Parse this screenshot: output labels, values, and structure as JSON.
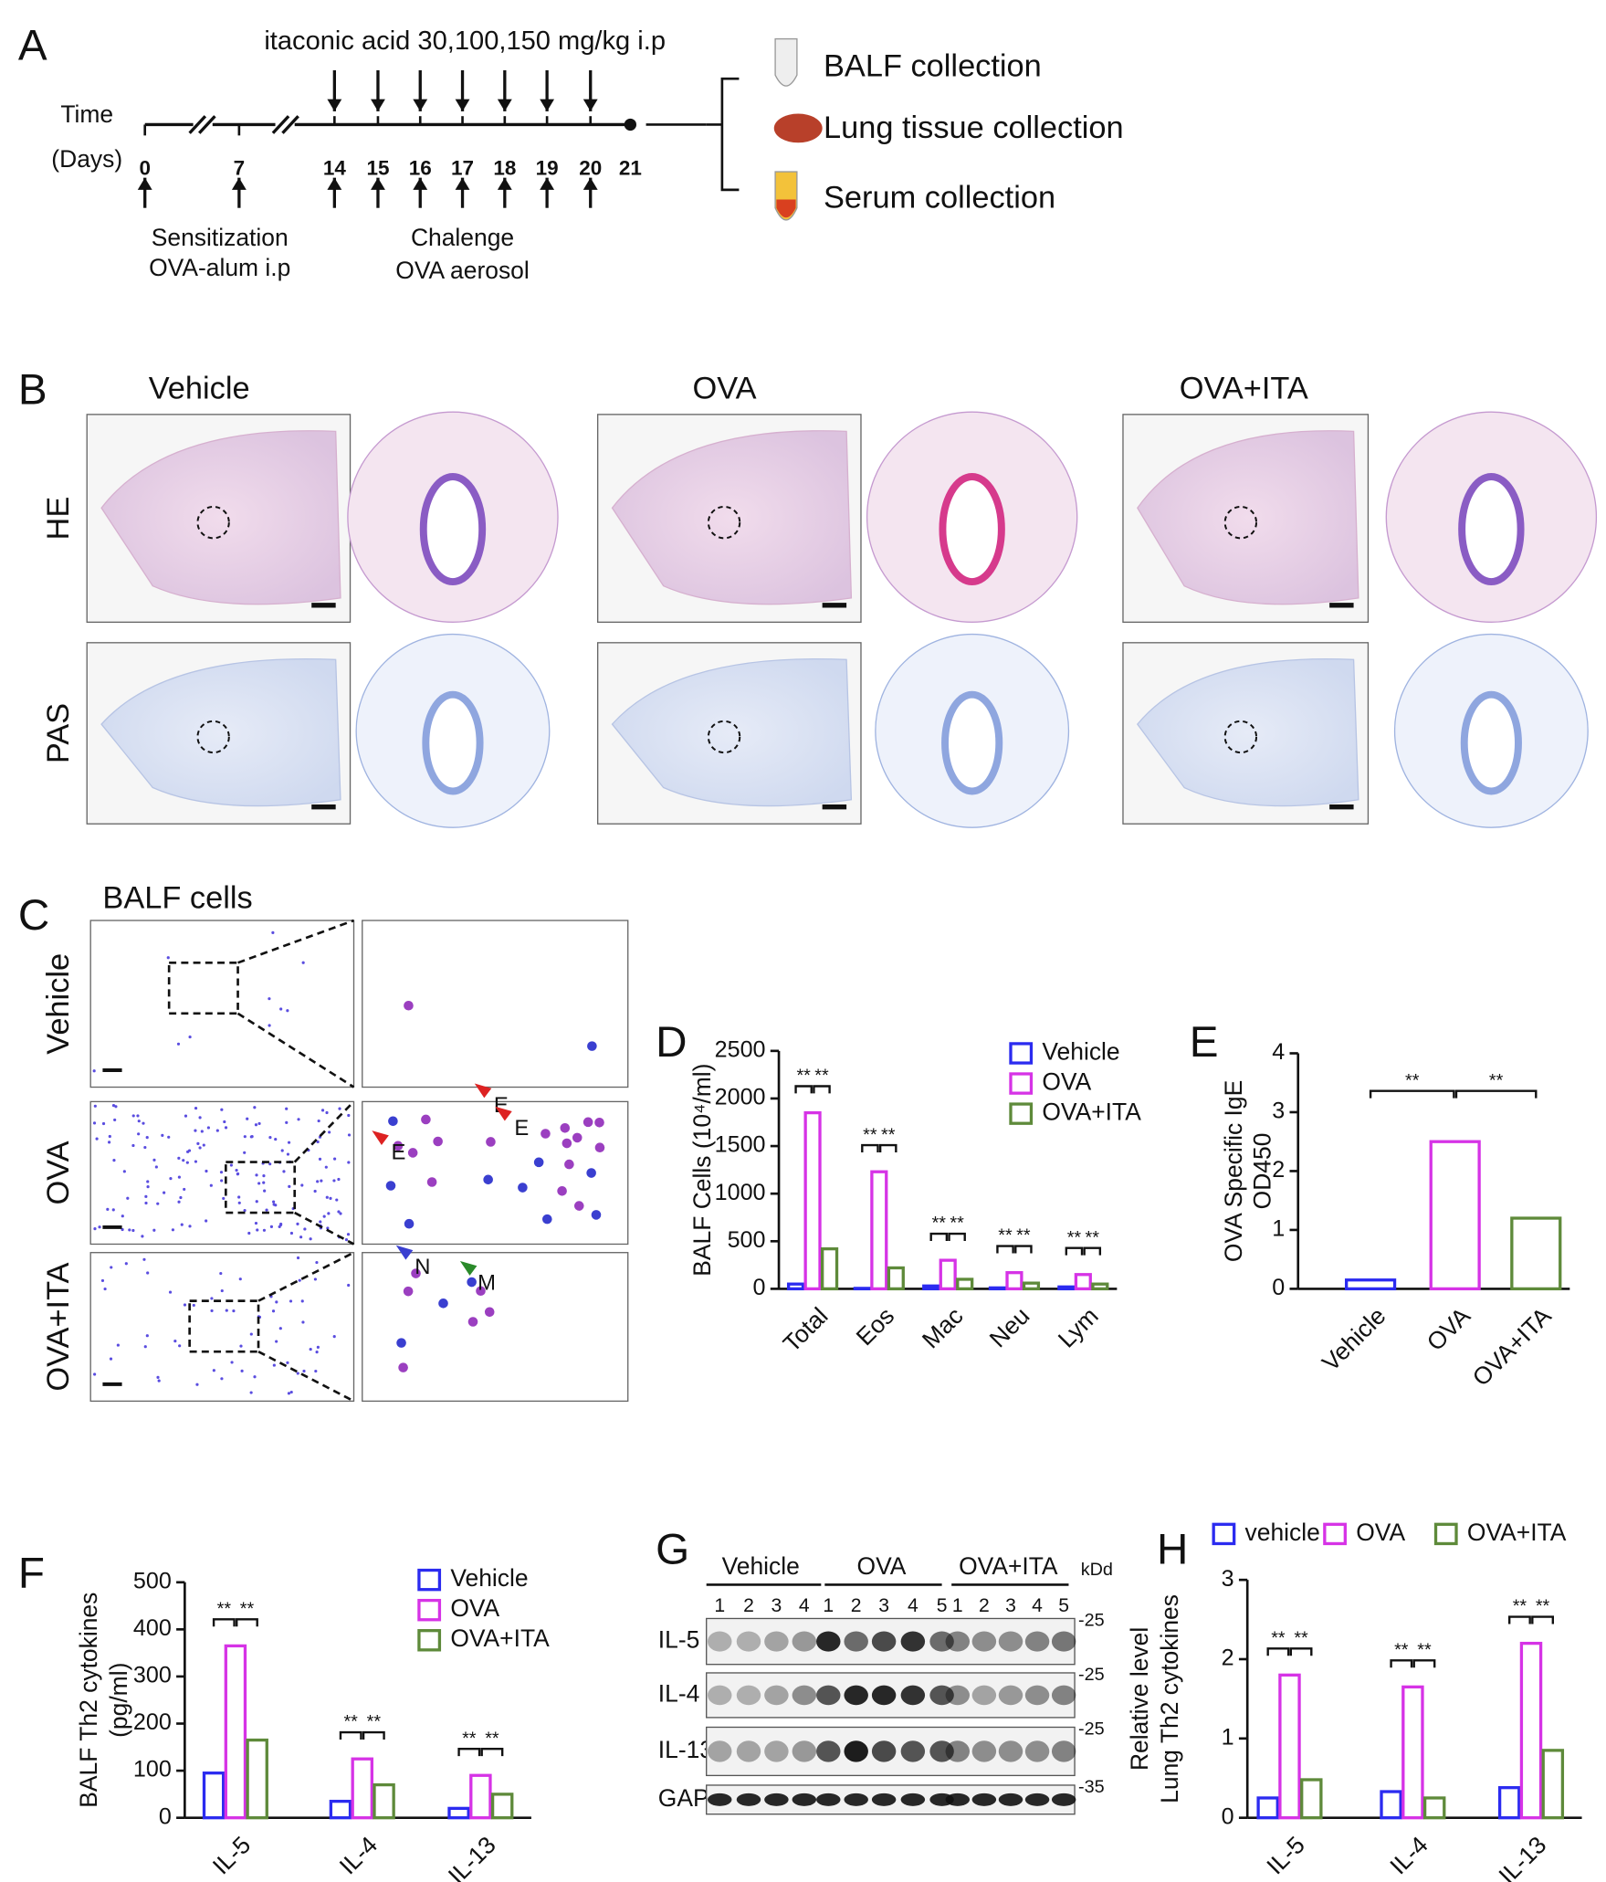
{
  "labels": [
    "A",
    "B",
    "C",
    "D",
    "E",
    "F",
    "G",
    "H"
  ],
  "timeline": {
    "treatment": "itaconic acid 30,100,150 mg/kg i.p",
    "time": "Time",
    "days_label": "(Days)",
    "days": [
      "0",
      "7",
      "14",
      "15",
      "16",
      "17",
      "18",
      "19",
      "20",
      "21"
    ],
    "sensitization": [
      "Sensitization",
      "OVA-alum i.p"
    ],
    "challenge": [
      "Chalenge",
      "OVA aerosol"
    ],
    "collections": [
      "BALF collection",
      "Lung tissue collection",
      "Serum collection"
    ]
  },
  "histology": {
    "groups": [
      "Vehicle",
      "OVA",
      "OVA+ITA"
    ],
    "stains": [
      "HE",
      "PAS"
    ]
  },
  "balf_cells": {
    "title": "BALF cells",
    "groups": [
      "Vehicle",
      "OVA",
      "OVA+ITA"
    ],
    "cell_marks": [
      "E",
      "E",
      "E",
      "N",
      "M"
    ]
  },
  "western_blot": {
    "groups": [
      "Vehicle",
      "OVA",
      "OVA+ITA"
    ],
    "lanes": [
      [
        "1",
        "2",
        "3",
        "4"
      ],
      [
        "1",
        "2",
        "3",
        "4",
        "5"
      ],
      [
        "1",
        "2",
        "3",
        "4",
        "5"
      ]
    ],
    "unit": "kDd",
    "proteins": [
      "IL-5",
      "IL-4",
      "IL-13",
      "GAPDH"
    ],
    "markers": [
      "-25",
      "-25",
      "-25",
      "-35"
    ]
  },
  "chart_data": [
    {
      "type": "bar",
      "ylabel": "BALF Cells (10⁴/ml)",
      "categories": [
        "Total",
        "Eos",
        "Mac",
        "Neu",
        "Lym"
      ],
      "series": [
        {
          "name": "Vehicle",
          "color": "#2b2bf0",
          "values": [
            50,
            5,
            30,
            10,
            20
          ]
        },
        {
          "name": "OVA",
          "color": "#d633e6",
          "values": [
            1850,
            1230,
            300,
            170,
            150
          ]
        },
        {
          "name": "OVA+ITA",
          "color": "#5e8a3a",
          "values": [
            420,
            220,
            100,
            60,
            50
          ]
        }
      ],
      "ylim": [
        0,
        2500
      ],
      "yticks": [
        0,
        500,
        1000,
        1500,
        2000,
        2500
      ],
      "significance": "**"
    },
    {
      "type": "bar",
      "ylabel": [
        "OVA Specific IgE",
        "OD450"
      ],
      "categories": [
        "Vehicle",
        "OVA",
        "OVA+ITA"
      ],
      "values": [
        0.15,
        2.5,
        1.2
      ],
      "colors": [
        "#2b2bf0",
        "#d633e6",
        "#5e8a3a"
      ],
      "ylim": [
        0,
        4
      ],
      "yticks": [
        0,
        1,
        2,
        3,
        4
      ],
      "significance": "**"
    },
    {
      "type": "bar",
      "ylabel": [
        "BALF Th2 cytokines",
        "(pg/ml)"
      ],
      "categories": [
        "IL-5",
        "IL-4",
        "IL-13"
      ],
      "series": [
        {
          "name": "Vehicle",
          "color": "#2b2bf0",
          "values": [
            95,
            35,
            20
          ]
        },
        {
          "name": "OVA",
          "color": "#d633e6",
          "values": [
            365,
            125,
            90
          ]
        },
        {
          "name": "OVA+ITA",
          "color": "#5e8a3a",
          "values": [
            165,
            70,
            50
          ]
        }
      ],
      "ylim": [
        0,
        500
      ],
      "yticks": [
        0,
        100,
        200,
        300,
        400,
        500
      ],
      "significance": "**"
    },
    {
      "type": "bar",
      "ylabel": [
        "Relative level",
        "Lung Th2 cytokines"
      ],
      "categories": [
        "IL-5",
        "IL-4",
        "IL-13"
      ],
      "series": [
        {
          "name": "vehicle",
          "color": "#2b2bf0",
          "values": [
            0.25,
            0.33,
            0.38
          ]
        },
        {
          "name": "OVA",
          "color": "#d633e6",
          "values": [
            1.8,
            1.65,
            2.2
          ]
        },
        {
          "name": "OVA+ITA",
          "color": "#5e8a3a",
          "values": [
            0.48,
            0.25,
            0.85
          ]
        }
      ],
      "ylim": [
        0,
        3
      ],
      "yticks": [
        0,
        1,
        2,
        3
      ],
      "significance": "**"
    }
  ]
}
